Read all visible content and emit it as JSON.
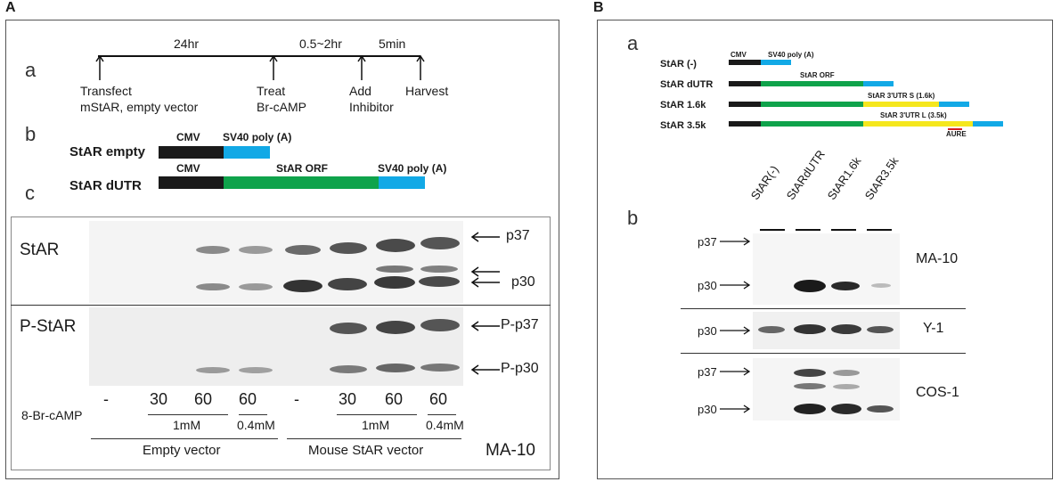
{
  "panelA": {
    "label": "A",
    "a": {
      "letter": "a",
      "durations": [
        "24hr",
        "0.5~2hr",
        "5min"
      ],
      "steps": [
        {
          "line1": "Transfect",
          "line2": "mStAR, empty vector"
        },
        {
          "line1": "Treat",
          "line2": "Br-cAMP"
        },
        {
          "line1": "Add",
          "line2": "Inhibitor"
        },
        {
          "line1": "Harvest",
          "line2": ""
        }
      ]
    },
    "b": {
      "letter": "b",
      "construct": "StAR empty",
      "cmv": "CMV",
      "polyA": "SV40 poly (A)"
    },
    "c": {
      "letter": "c",
      "construct": "StAR dUTR",
      "cmv": "CMV",
      "orf": "StAR ORF",
      "polyA": "SV40 poly (A)"
    },
    "blot": {
      "rowStAR": "StAR",
      "rowPStAR": "P-StAR",
      "p37": "p37",
      "p30": "p30",
      "Pp37": "P-p37",
      "Pp30": "P-p30",
      "treatment": "8-Br-cAMP",
      "times": [
        "-",
        "30",
        "60",
        "60",
        "-",
        "30",
        "60",
        "60"
      ],
      "conc": [
        "1mM",
        "0.4mM",
        "1mM",
        "0.4mM"
      ],
      "groups": [
        "Empty vector",
        "Mouse StAR vector"
      ],
      "cell": "MA-10"
    }
  },
  "panelB": {
    "label": "B",
    "a": {
      "letter": "a",
      "constructs": [
        "StAR (-)",
        "StAR dUTR",
        "StAR 1.6k",
        "StAR 3.5k"
      ],
      "cmv": "CMV",
      "polyA": "SV40 poly (A)",
      "orf": "StAR ORF",
      "utrS": "StAR 3'UTR S (1.6k)",
      "utrL": "StAR 3'UTR L (3.5k)",
      "aure": "AURE"
    },
    "b": {
      "letter": "b",
      "lanes": [
        "StAR(-)",
        "StARdUTR",
        "StAR1.6k",
        "StAR3.5k"
      ],
      "blots": [
        {
          "cell": "MA-10",
          "markers": [
            "p37",
            "p30"
          ]
        },
        {
          "cell": "Y-1",
          "markers": [
            "p30"
          ]
        },
        {
          "cell": "COS-1",
          "markers": [
            "p37",
            "p30"
          ]
        }
      ]
    }
  }
}
